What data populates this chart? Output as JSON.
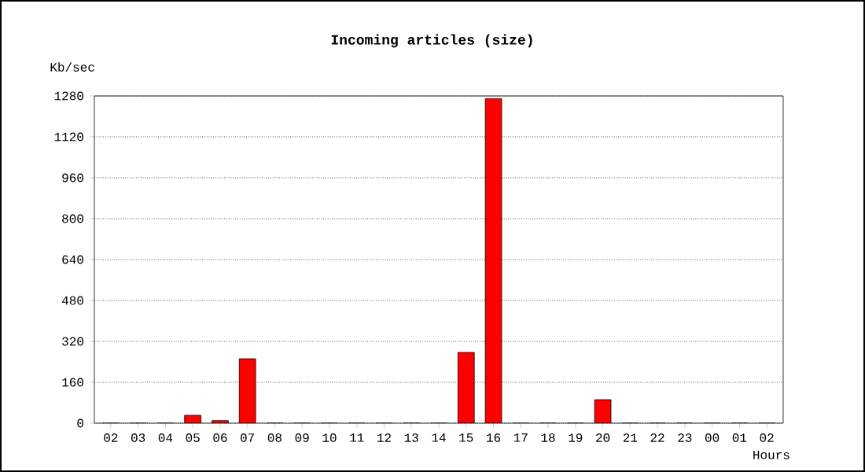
{
  "chart_data": {
    "type": "bar",
    "title": "Incoming articles (size)",
    "xlabel": "Hours",
    "ylabel": "Kb/sec",
    "categories": [
      "02",
      "03",
      "04",
      "05",
      "06",
      "07",
      "08",
      "09",
      "10",
      "11",
      "12",
      "13",
      "14",
      "15",
      "16",
      "17",
      "18",
      "19",
      "20",
      "21",
      "22",
      "23",
      "00",
      "01",
      "02"
    ],
    "values": [
      0,
      0,
      0,
      31,
      10,
      252,
      0,
      0,
      0,
      0,
      0,
      0,
      0,
      277,
      1270,
      0,
      0,
      0,
      92,
      0,
      0,
      0,
      0,
      0,
      0
    ],
    "color": "#ff0000",
    "ylim": [
      0,
      1280
    ],
    "yticks": [
      0,
      160,
      320,
      480,
      640,
      800,
      960,
      1120,
      1280
    ],
    "grid": "y"
  }
}
